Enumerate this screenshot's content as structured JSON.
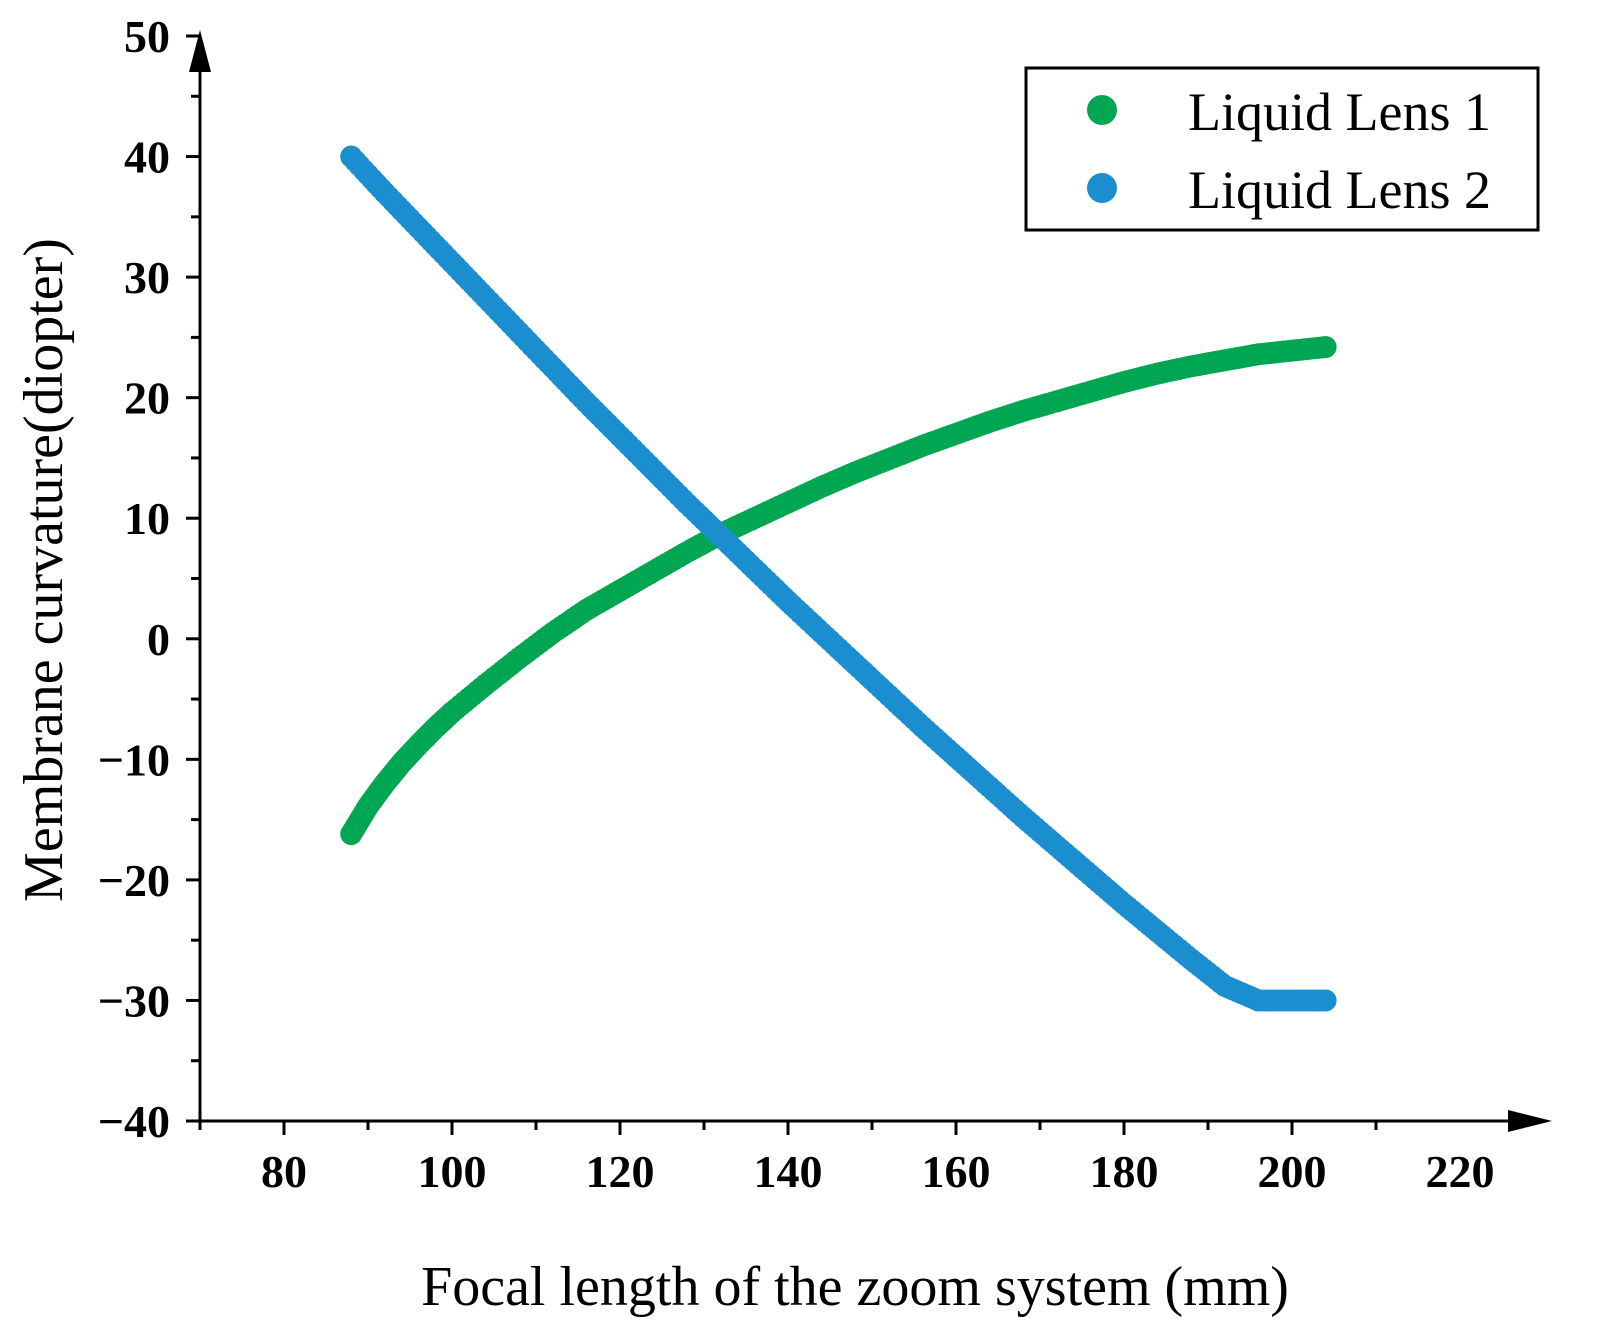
{
  "chart_data": {
    "type": "scatter",
    "title": "",
    "xlabel": "Focal length of the zoom system (mm)",
    "ylabel": "Membrane curvature(diopter)",
    "xlim": [
      70,
      220
    ],
    "ylim": [
      -40,
      50
    ],
    "xticks": [
      80,
      100,
      120,
      140,
      160,
      180,
      200,
      220
    ],
    "xtick_labels": [
      "80",
      "100",
      "120",
      "140",
      "160",
      "180",
      "200",
      "220"
    ],
    "yticks": [
      -40,
      -30,
      -20,
      -10,
      0,
      10,
      20,
      30,
      40,
      50
    ],
    "ytick_labels": [
      "-40",
      "-30",
      "-20",
      "-10",
      "0",
      "10",
      "20",
      "30",
      "40",
      "50"
    ],
    "grid": false,
    "legend_position": "top-right",
    "series": [
      {
        "name": "Liquid Lens 1",
        "color": "#00a651",
        "x": [
          88,
          90,
          92,
          94,
          96,
          98,
          100,
          104,
          108,
          112,
          116,
          120,
          124,
          128,
          132,
          136,
          140,
          144,
          148,
          152,
          156,
          160,
          164,
          168,
          172,
          176,
          180,
          184,
          188,
          192,
          196,
          200,
          204
        ],
        "y": [
          -16.2,
          -13.9,
          -12.0,
          -10.3,
          -8.8,
          -7.4,
          -6.1,
          -3.8,
          -1.6,
          0.5,
          2.4,
          4.0,
          5.6,
          7.2,
          8.7,
          10.0,
          11.3,
          12.6,
          13.8,
          14.9,
          16.0,
          17.0,
          18.0,
          18.9,
          19.7,
          20.5,
          21.3,
          22.0,
          22.6,
          23.1,
          23.6,
          23.9,
          24.2
        ]
      },
      {
        "name": "Liquid Lens 2",
        "color": "#1b8ed0",
        "x": [
          88,
          92,
          96,
          100,
          104,
          108,
          112,
          116,
          120,
          124,
          128,
          132,
          136,
          140,
          144,
          148,
          152,
          156,
          160,
          164,
          168,
          172,
          176,
          180,
          184,
          188,
          192,
          196,
          200,
          204
        ],
        "y": [
          40.0,
          37.0,
          34.1,
          31.2,
          28.3,
          25.4,
          22.5,
          19.6,
          16.8,
          14.0,
          11.2,
          8.5,
          5.8,
          3.1,
          0.5,
          -2.1,
          -4.7,
          -7.3,
          -9.8,
          -12.3,
          -14.8,
          -17.2,
          -19.6,
          -22.0,
          -24.3,
          -26.6,
          -28.8,
          -30.0,
          -30.0,
          -30.0
        ]
      }
    ]
  }
}
